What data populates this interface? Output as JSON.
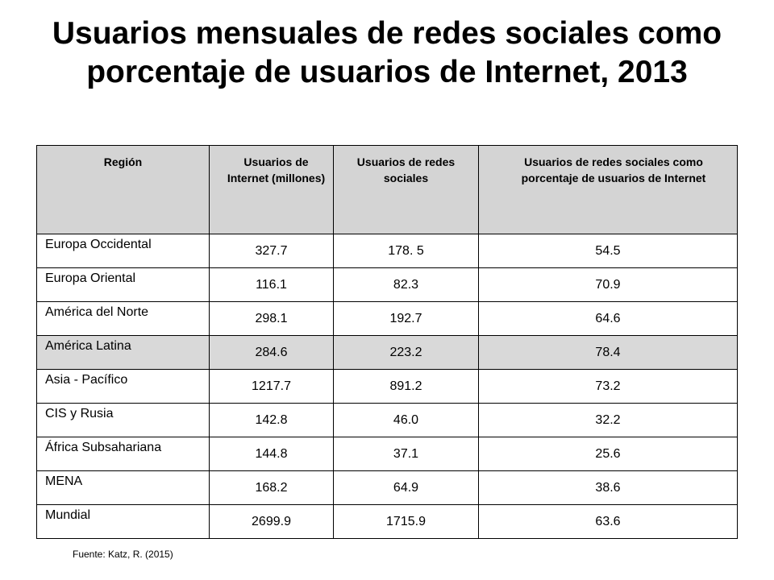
{
  "title": "Usuarios mensuales de redes sociales como porcentaje de usuarios de Internet, 2013",
  "headers": [
    "Región",
    "Usuarios de Internet (millones)",
    "Usuarios de redes sociales",
    "Usuarios de redes sociales como porcentaje de usuarios de Internet"
  ],
  "rows": [
    {
      "region": "Europa Occidental",
      "internet": "327.7",
      "social": "178. 5",
      "pct": "54.5"
    },
    {
      "region": "Europa Oriental",
      "internet": "116.1",
      "social": "82.3",
      "pct": "70.9"
    },
    {
      "region": "América del Norte",
      "internet": "298.1",
      "social": "192.7",
      "pct": "64.6"
    },
    {
      "region": "América Latina",
      "internet": "284.6",
      "social": "223.2",
      "pct": "78.4"
    },
    {
      "region": "Asia - Pacífico",
      "internet": "1217.7",
      "social": "891.2",
      "pct": "73.2"
    },
    {
      "region": "CIS y Rusia",
      "internet": "142.8",
      "social": "46.0",
      "pct": "32.2"
    },
    {
      "region": "África Subsahariana",
      "internet": "144.8",
      "social": "37.1",
      "pct": "25.6"
    },
    {
      "region": "MENA",
      "internet": "168.2",
      "social": "64.9",
      "pct": "38.6"
    },
    {
      "region": "Mundial",
      "internet": "2699.9",
      "social": "1715.9",
      "pct": "63.6"
    }
  ],
  "highlighted_row": "América Latina",
  "colors": {
    "header_bg": "#d4d4d4",
    "highlight_bg": "#d9d9d9"
  },
  "source": "Fuente: Katz, R. (2015)"
}
